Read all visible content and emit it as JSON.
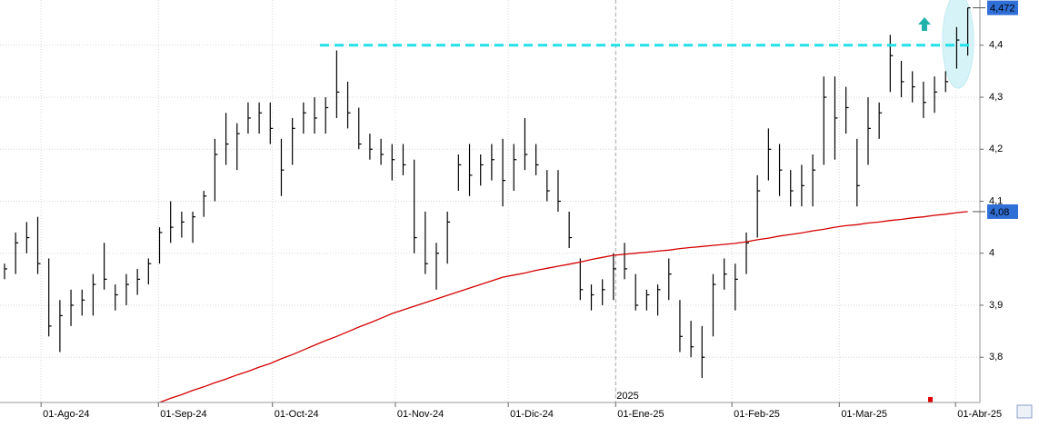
{
  "chart_data": {
    "type": "ohlc",
    "xlim": [
      -0.41,
      88.1
    ],
    "ylim": [
      3.713,
      4.487
    ],
    "yticks": [
      {
        "value": 3.8,
        "label": "3,8"
      },
      {
        "value": 3.9,
        "label": "3,9"
      },
      {
        "value": 4.0,
        "label": "4"
      },
      {
        "value": 4.1,
        "label": "4,1"
      },
      {
        "value": 4.2,
        "label": "4,2"
      },
      {
        "value": 4.3,
        "label": "4,3"
      },
      {
        "value": 4.4,
        "label": "4,4"
      }
    ],
    "xticks": [
      {
        "value": 3.3,
        "label": "01-Ago-24"
      },
      {
        "value": 13.9,
        "label": "01-Sep-24"
      },
      {
        "value": 24.2,
        "label": "01-Oct-24"
      },
      {
        "value": 35.3,
        "label": "01-Nov-24"
      },
      {
        "value": 45.5,
        "label": "01-Dic-24"
      },
      {
        "value": 55.2,
        "label": "01-Ene-25"
      },
      {
        "value": 65.7,
        "label": "01-Feb-25"
      },
      {
        "value": 75.4,
        "label": "01-Mar-25"
      },
      {
        "value": 85.9,
        "label": "01-Abr-25"
      }
    ],
    "year_marker": {
      "value": 55.2,
      "label": "2025"
    },
    "grid": true,
    "bar_color": "#000000",
    "high": [
      3.98,
      4.04,
      4.06,
      4.07,
      3.99,
      3.91,
      3.93,
      3.93,
      3.96,
      4.02,
      3.94,
      3.96,
      3.97,
      3.99,
      4.05,
      4.1,
      4.08,
      4.08,
      4.12,
      4.22,
      4.27,
      4.25,
      4.29,
      4.29,
      4.29,
      4.22,
      4.26,
      4.29,
      4.3,
      4.3,
      4.39,
      4.33,
      4.28,
      4.23,
      4.22,
      4.21,
      4.21,
      4.18,
      4.08,
      4.02,
      4.08,
      4.19,
      4.21,
      4.19,
      4.21,
      4.22,
      4.21,
      4.26,
      4.21,
      4.16,
      4.16,
      4.08,
      3.99,
      3.94,
      3.95,
      4.0,
      4.02,
      3.96,
      3.93,
      3.94,
      3.99,
      3.91,
      3.87,
      3.86,
      3.96,
      3.99,
      3.98,
      4.04,
      4.15,
      4.24,
      4.21,
      4.16,
      4.17,
      4.19,
      4.34,
      4.34,
      4.32,
      4.22,
      4.3,
      4.29,
      4.42,
      4.37,
      4.35,
      4.33,
      4.34,
      4.35,
      4.435,
      4.472
    ],
    "low": [
      3.95,
      3.96,
      4.0,
      3.96,
      3.84,
      3.81,
      3.86,
      3.88,
      3.88,
      3.93,
      3.89,
      3.9,
      3.92,
      3.94,
      3.98,
      4.02,
      4.03,
      4.02,
      4.07,
      4.1,
      4.17,
      4.16,
      4.23,
      4.23,
      4.21,
      4.11,
      4.17,
      4.23,
      4.23,
      4.23,
      4.26,
      4.24,
      4.2,
      4.18,
      4.17,
      4.14,
      4.15,
      4.0,
      3.96,
      3.93,
      3.98,
      4.12,
      4.11,
      4.13,
      4.14,
      4.09,
      4.12,
      4.16,
      4.15,
      4.1,
      4.08,
      4.01,
      3.91,
      3.89,
      3.9,
      3.91,
      3.95,
      3.89,
      3.89,
      3.88,
      3.91,
      3.81,
      3.8,
      3.76,
      3.84,
      3.93,
      3.89,
      3.96,
      4.03,
      4.14,
      4.11,
      4.09,
      4.09,
      4.09,
      4.17,
      4.18,
      4.23,
      4.09,
      4.17,
      4.22,
      4.31,
      4.3,
      4.29,
      4.26,
      4.27,
      4.31,
      4.355,
      4.38
    ],
    "close": [
      3.97,
      4.02,
      4.03,
      3.98,
      3.86,
      3.88,
      3.9,
      3.91,
      3.94,
      3.95,
      3.92,
      3.94,
      3.95,
      3.98,
      4.04,
      4.05,
      4.06,
      4.07,
      4.11,
      4.19,
      4.21,
      4.23,
      4.26,
      4.27,
      4.24,
      4.16,
      4.24,
      4.27,
      4.26,
      4.28,
      4.31,
      4.27,
      4.21,
      4.2,
      4.19,
      4.18,
      4.17,
      4.03,
      3.98,
      4.0,
      4.06,
      4.17,
      4.15,
      4.17,
      4.18,
      4.14,
      4.18,
      4.19,
      4.17,
      4.12,
      4.1,
      4.03,
      3.93,
      3.92,
      3.93,
      3.97,
      3.97,
      3.9,
      3.92,
      3.93,
      3.96,
      3.84,
      3.82,
      3.8,
      3.94,
      3.96,
      3.95,
      4.02,
      4.12,
      4.2,
      4.16,
      4.12,
      4.13,
      4.16,
      4.3,
      4.26,
      4.28,
      4.13,
      4.24,
      4.27,
      4.38,
      4.33,
      4.32,
      4.29,
      4.31,
      4.33,
      4.41,
      4.472
    ],
    "ma": {
      "color": "#d40000",
      "values": [
        null,
        null,
        null,
        null,
        null,
        null,
        null,
        null,
        null,
        null,
        null,
        null,
        null,
        null,
        3.713,
        3.721,
        3.728,
        3.736,
        3.743,
        3.751,
        3.758,
        3.766,
        3.773,
        3.781,
        3.788,
        3.797,
        3.805,
        3.814,
        3.823,
        3.832,
        3.84,
        3.849,
        3.858,
        3.866,
        3.875,
        3.884,
        3.891,
        3.898,
        3.905,
        3.912,
        3.919,
        3.926,
        3.933,
        3.94,
        3.947,
        3.954,
        3.958,
        3.962,
        3.967,
        3.971,
        3.975,
        3.979,
        3.983,
        3.988,
        3.992,
        3.996,
        3.998,
        4.0,
        4.002,
        4.004,
        4.006,
        4.009,
        4.011,
        4.013,
        4.015,
        4.017,
        4.019,
        4.022,
        4.026,
        4.029,
        4.033,
        4.036,
        4.039,
        4.043,
        4.046,
        4.05,
        4.053,
        4.055,
        4.058,
        4.06,
        4.063,
        4.065,
        4.068,
        4.07,
        4.073,
        4.075,
        4.078,
        4.08
      ]
    },
    "resistance": {
      "value": 4.4,
      "color": "#22e0e8"
    },
    "last_price": {
      "value": 4.472,
      "label": "4,472"
    },
    "ma_price": {
      "value": 4.08,
      "label": "4,08"
    }
  }
}
